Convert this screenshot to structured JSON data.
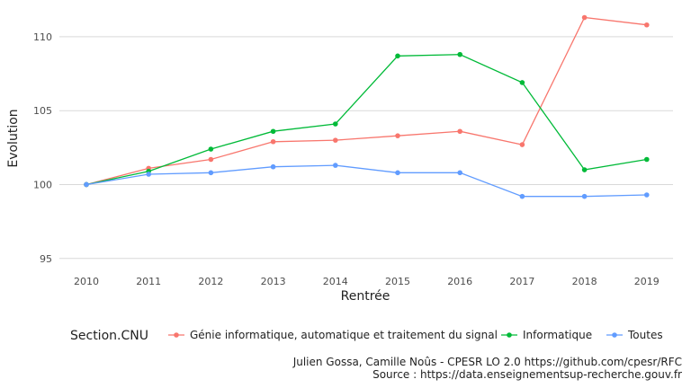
{
  "chart_data": {
    "type": "line",
    "xlabel": "Rentrée",
    "ylabel": "Evolution",
    "x": [
      2010,
      2011,
      2012,
      2013,
      2014,
      2015,
      2016,
      2017,
      2018,
      2019
    ],
    "ylim": [
      94.5,
      112
    ],
    "yticks": [
      95,
      100,
      105,
      110
    ],
    "grid": "horizontal",
    "legend": {
      "title": "Section.CNU",
      "placement": "bottom"
    },
    "series": [
      {
        "name": "Génie informatique, automatique et traitement du signal",
        "color": "#F8766D",
        "values": [
          100.0,
          101.1,
          101.7,
          102.9,
          103.0,
          103.3,
          103.6,
          102.7,
          111.3,
          110.8
        ]
      },
      {
        "name": "Informatique",
        "color": "#00BA38",
        "values": [
          100.0,
          100.9,
          102.4,
          103.6,
          104.1,
          108.7,
          108.8,
          106.9,
          101.0,
          101.7
        ]
      },
      {
        "name": "Toutes",
        "color": "#619CFF",
        "values": [
          100.0,
          100.7,
          100.8,
          101.2,
          101.3,
          100.8,
          100.8,
          99.2,
          99.2,
          99.3
        ]
      }
    ],
    "caption": [
      "Julien Gossa, Camille Noûs - CPESR LO 2.0 https://github.com/cpesr/RFC",
      "Source : https://data.enseignementsup-recherche.gouv.fr"
    ]
  }
}
